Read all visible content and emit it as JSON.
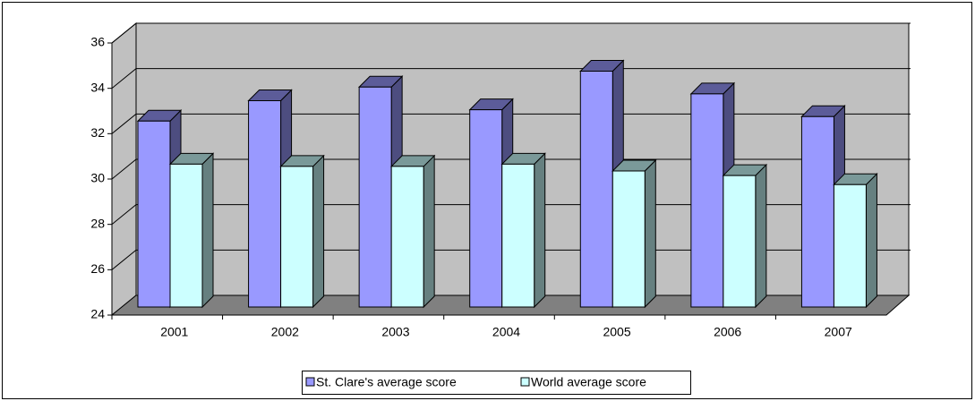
{
  "chart_data": {
    "type": "bar3d",
    "categories": [
      "2001",
      "2002",
      "2003",
      "2004",
      "2005",
      "2006",
      "2007"
    ],
    "series": [
      {
        "name": "St. Clare's average score",
        "color": "#9999ff",
        "values": [
          32.2,
          33.1,
          33.7,
          32.7,
          34.4,
          33.4,
          32.4
        ]
      },
      {
        "name": "World average score",
        "color": "#ccffff",
        "values": [
          30.3,
          30.2,
          30.2,
          30.3,
          30.0,
          29.8,
          29.4
        ]
      }
    ],
    "ylim": [
      24,
      36
    ],
    "yticks": [
      24,
      26,
      28,
      30,
      32,
      34,
      36
    ],
    "grid": true,
    "legend": "bottom"
  }
}
